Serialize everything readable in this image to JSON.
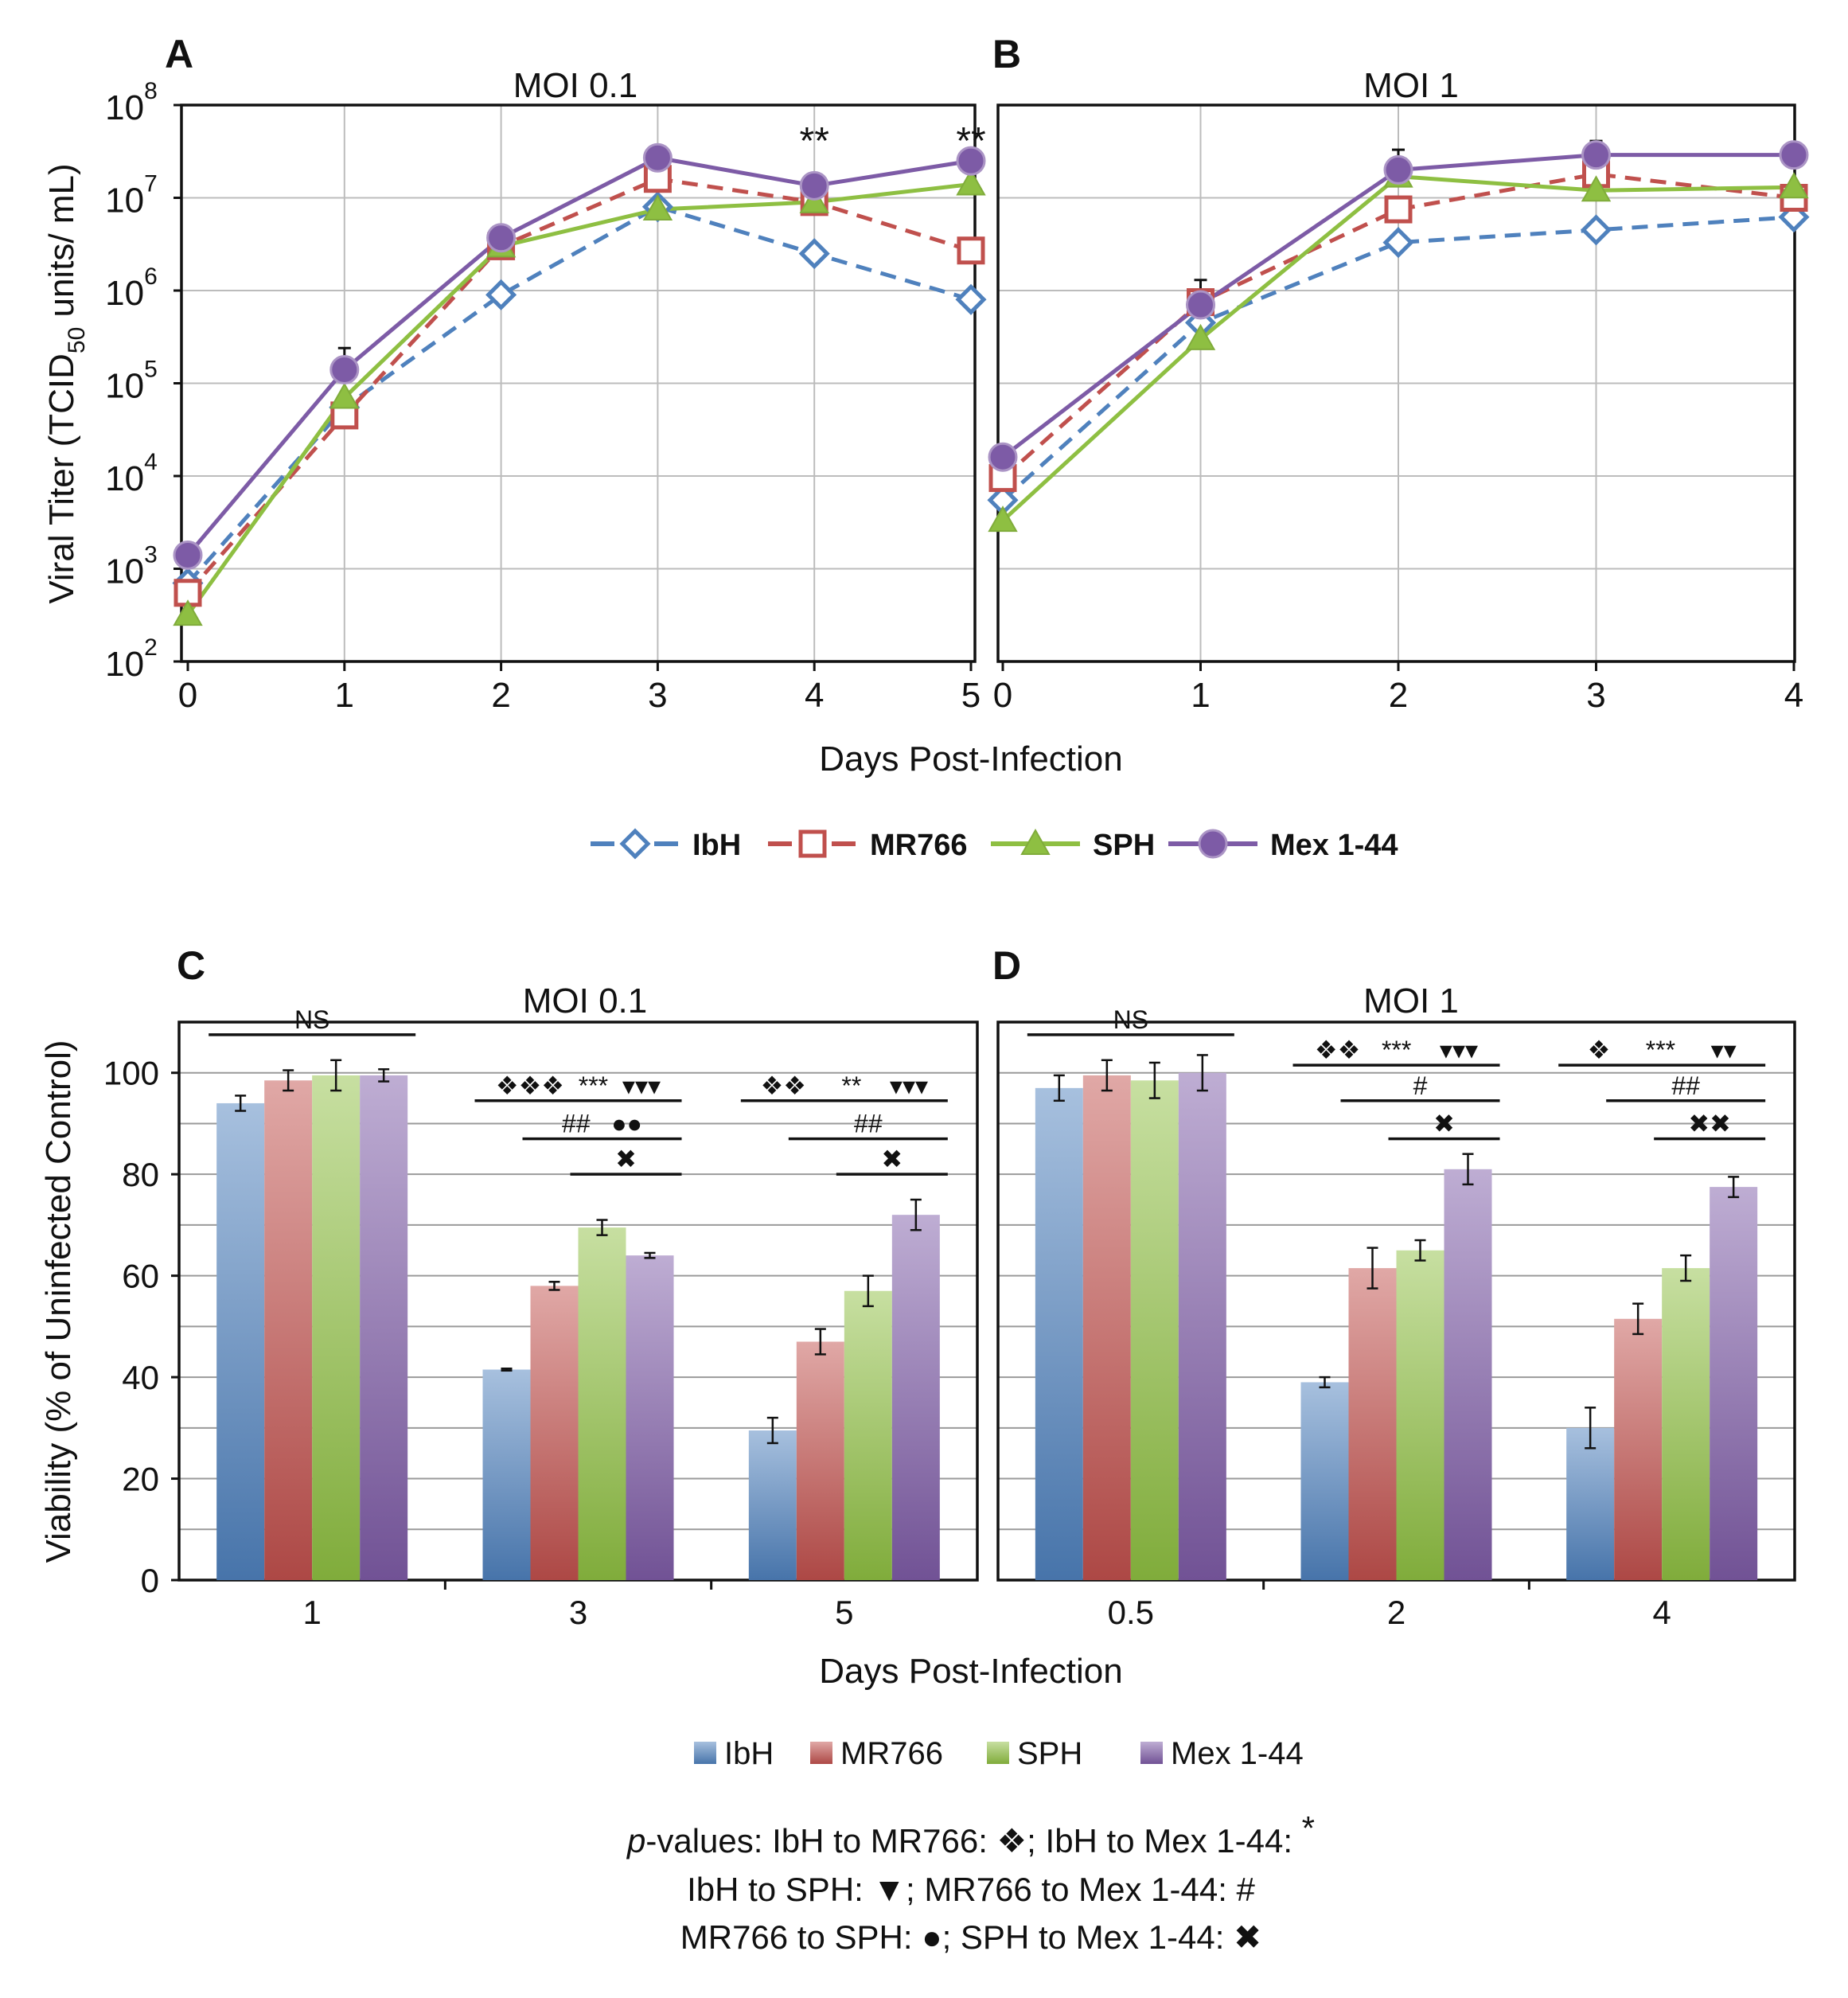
{
  "figure": {
    "x_axis_label": "Days Post-Infection",
    "legend_line": [
      {
        "name": "IbH",
        "color": "#4f81bd",
        "marker": "diamond",
        "dashed": true
      },
      {
        "name": "MR766",
        "color": "#c0504d",
        "marker": "square",
        "dashed": true
      },
      {
        "name": "SPH",
        "color": "#8ebf42",
        "marker": "triangle",
        "dashed": false
      },
      {
        "name": "Mex 1-44",
        "color": "#7d5ba6",
        "marker": "circle",
        "dashed": false
      }
    ],
    "legend_bar": [
      {
        "name": "IbH",
        "color": "#4f81bd"
      },
      {
        "name": "MR766",
        "color": "#c0504d"
      },
      {
        "name": "SPH",
        "color": "#8ebf42"
      },
      {
        "name": "Mex 1-44",
        "color": "#7d5ba6"
      }
    ],
    "pvalue_lines": [
      [
        {
          "t": "p",
          "i": true
        },
        {
          "t": "-values: IbH to MR766: ❖; IbH to Mex 1-44: "
        },
        {
          "t": "*",
          "sup": true
        }
      ],
      [
        {
          "t": "IbH to SPH: ▼; MR766 to Mex 1-44: #"
        }
      ],
      [
        {
          "t": "MR766 to SPH: ●; SPH to Mex 1-44: ✖"
        }
      ]
    ]
  },
  "chart_data": [
    {
      "panel": "A",
      "type": "line",
      "title": "MOI 0.1",
      "xlabel": "Days Post-Infection",
      "ylabel": "Viral Titer (TCID50 units/ mL)",
      "yscale": "log",
      "ylim": [
        100,
        100000000
      ],
      "ytick_exponents": [
        2,
        3,
        4,
        5,
        6,
        7,
        8
      ],
      "x": [
        0,
        1,
        2,
        3,
        4,
        5
      ],
      "series": [
        {
          "name": "IbH",
          "values": [
            700,
            55000,
            900000,
            8000000,
            2500000,
            800000
          ]
        },
        {
          "name": "MR766",
          "values": [
            550,
            45000,
            3000000,
            16000000,
            9000000,
            2700000
          ]
        },
        {
          "name": "SPH",
          "values": [
            320,
            70000,
            3000000,
            7500000,
            9000000,
            14000000
          ]
        },
        {
          "name": "Mex 1-44",
          "values": [
            1400,
            140000,
            3700000,
            27000000,
            13500000,
            25000000
          ]
        }
      ],
      "error_up": {
        "Mex 1-44": [
          0,
          100000,
          0,
          0,
          0,
          0
        ]
      },
      "annotations": [
        {
          "x": 4,
          "text": "**"
        },
        {
          "x": 5,
          "text": "**"
        }
      ]
    },
    {
      "panel": "B",
      "type": "line",
      "title": "MOI 1",
      "xlabel": "Days Post-Infection",
      "yscale": "log",
      "ylim": [
        100,
        100000000
      ],
      "x": [
        0,
        1,
        2,
        3,
        4
      ],
      "series": [
        {
          "name": "IbH",
          "values": [
            5500,
            450000,
            3300000,
            4500000,
            6200000
          ]
        },
        {
          "name": "MR766",
          "values": [
            9500,
            750000,
            7500000,
            18000000,
            10000000
          ]
        },
        {
          "name": "SPH",
          "values": [
            3300,
            300000,
            17000000,
            12000000,
            13000000
          ]
        },
        {
          "name": "Mex 1-44",
          "values": [
            16000,
            700000,
            20000000,
            29000000,
            29000000
          ]
        }
      ],
      "error_up": {
        "Mex 1-44": [
          0,
          600000,
          13000000,
          12000000,
          6000000
        ]
      },
      "annotations": []
    },
    {
      "panel": "C",
      "type": "bar",
      "title": "MOI 0.1",
      "xlabel": "Days Post-Infection",
      "ylabel": "Viability (% of Uninfected Control)",
      "ylim": [
        0,
        110
      ],
      "yticks": [
        0,
        20,
        40,
        60,
        80,
        100
      ],
      "categories": [
        "1",
        "3",
        "5"
      ],
      "series": [
        {
          "name": "IbH",
          "values": [
            94,
            41.5,
            29.5
          ],
          "errors": [
            1.5,
            0.2,
            2.5
          ]
        },
        {
          "name": "MR766",
          "values": [
            98.5,
            58,
            47
          ],
          "errors": [
            2,
            0.8,
            2.5
          ]
        },
        {
          "name": "SPH",
          "values": [
            99.5,
            69.5,
            57
          ],
          "errors": [
            3,
            1.5,
            3
          ]
        },
        {
          "name": "Mex 1-44",
          "values": [
            99.5,
            64,
            72
          ],
          "errors": [
            1.2,
            0.5,
            3
          ]
        }
      ],
      "significance": [
        {
          "from_category": 0,
          "from_series": 0,
          "to_category": 0,
          "to_series": 3,
          "level": 107.5,
          "label": "NS"
        },
        {
          "from_category": 1,
          "from_series": 0,
          "to_category": 1,
          "to_series": 3,
          "level": 94.5,
          "label": "❖❖❖  ***  ▾▾▾"
        },
        {
          "from_category": 1,
          "from_series": 1,
          "to_category": 1,
          "to_series": 3,
          "level": 87,
          "label": "##   ●●"
        },
        {
          "from_category": 1,
          "from_series": 2,
          "to_category": 1,
          "to_series": 3,
          "level": 80,
          "label": "✖"
        },
        {
          "from_category": 2,
          "from_series": 0,
          "to_category": 2,
          "to_series": 3,
          "level": 94.5,
          "label": "❖❖     **    ▾▾▾"
        },
        {
          "from_category": 2,
          "from_series": 1,
          "to_category": 2,
          "to_series": 3,
          "level": 87,
          "label": "##"
        },
        {
          "from_category": 2,
          "from_series": 2,
          "to_category": 2,
          "to_series": 3,
          "level": 80,
          "label": "✖"
        }
      ]
    },
    {
      "panel": "D",
      "type": "bar",
      "title": "MOI 1",
      "xlabel": "Days Post-Infection",
      "ylim": [
        0,
        110
      ],
      "yticks": [
        0,
        20,
        40,
        60,
        80,
        100
      ],
      "categories": [
        "0.5",
        "2",
        "4"
      ],
      "series": [
        {
          "name": "IbH",
          "values": [
            97,
            39,
            30
          ],
          "errors": [
            2.5,
            1,
            4
          ]
        },
        {
          "name": "MR766",
          "values": [
            99.5,
            61.5,
            51.5
          ],
          "errors": [
            3,
            4,
            3
          ]
        },
        {
          "name": "SPH",
          "values": [
            98.5,
            65,
            61.5
          ],
          "errors": [
            3.5,
            2,
            2.5
          ]
        },
        {
          "name": "Mex 1-44",
          "values": [
            100,
            81,
            77.5
          ],
          "errors": [
            3.5,
            3,
            2
          ]
        }
      ],
      "significance": [
        {
          "from_category": 0,
          "from_series": 0,
          "to_category": 0,
          "to_series": 3,
          "level": 107.5,
          "label": "NS"
        },
        {
          "from_category": 1,
          "from_series": 0,
          "to_category": 1,
          "to_series": 3,
          "level": 101.5,
          "label": "❖❖   ***    ▾▾▾"
        },
        {
          "from_category": 1,
          "from_series": 1,
          "to_category": 1,
          "to_series": 3,
          "level": 94.5,
          "label": "#"
        },
        {
          "from_category": 1,
          "from_series": 2,
          "to_category": 1,
          "to_series": 3,
          "level": 87,
          "label": "✖"
        },
        {
          "from_category": 2,
          "from_series": 0,
          "to_category": 2,
          "to_series": 3,
          "level": 101.5,
          "label": "❖     ***     ▾▾"
        },
        {
          "from_category": 2,
          "from_series": 1,
          "to_category": 2,
          "to_series": 3,
          "level": 94.5,
          "label": "##"
        },
        {
          "from_category": 2,
          "from_series": 2,
          "to_category": 2,
          "to_series": 3,
          "level": 87,
          "label": "✖✖"
        }
      ]
    }
  ]
}
